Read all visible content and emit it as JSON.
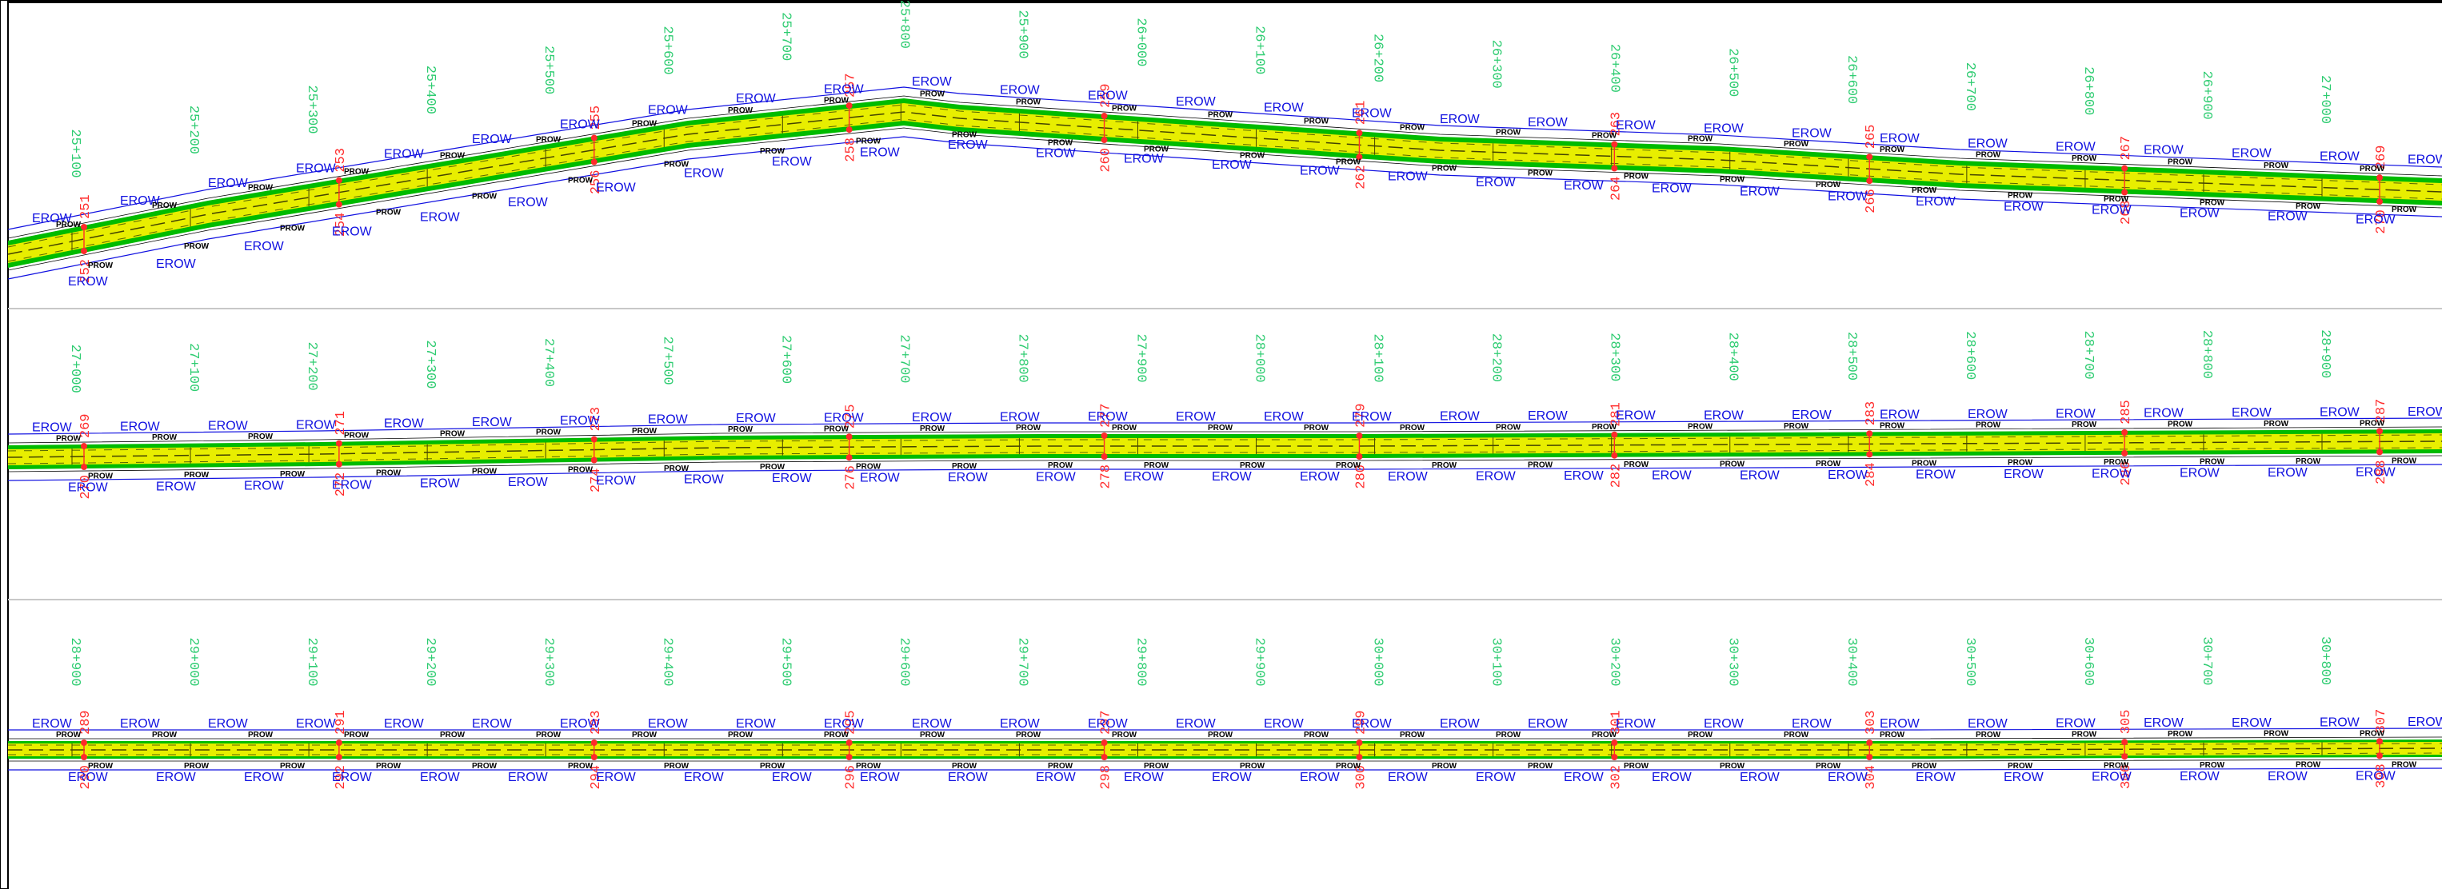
{
  "labels": {
    "erow": "EROW",
    "prow": "PROW"
  },
  "colors": {
    "background": "#ffffff",
    "frame": "#000000",
    "panel_border": "#c8c8c8",
    "corridor_outer": "#00bb00",
    "corridor_inner": "#e8ee00",
    "centerline": "#444400",
    "station_label": "#2ecc71",
    "reference_point": "#ff2b2b",
    "erow": "#1010e0",
    "prow": "#000000"
  },
  "panels": [
    {
      "name": "panel-1",
      "stations": [
        "25+100",
        "25+200",
        "25+300",
        "25+400",
        "25+500",
        "25+600",
        "25+700",
        "25+800",
        "25+900",
        "26+000",
        "26+100",
        "26+200",
        "26+300",
        "26+400",
        "26+500",
        "26+600",
        "26+700",
        "26+800",
        "26+900",
        "27+000"
      ],
      "points_top": [
        "251",
        "253",
        "255",
        "257",
        "259",
        "261",
        "263",
        "265",
        "267",
        "269"
      ],
      "points_bottom": [
        "252",
        "254",
        "256",
        "258",
        "260",
        "262",
        "264",
        "266",
        "268",
        "270"
      ]
    },
    {
      "name": "panel-2",
      "stations": [
        "27+000",
        "27+100",
        "27+200",
        "27+300",
        "27+400",
        "27+500",
        "27+600",
        "27+700",
        "27+800",
        "27+900",
        "28+000",
        "28+100",
        "28+200",
        "28+300",
        "28+400",
        "28+500",
        "28+600",
        "28+700",
        "28+800",
        "28+900"
      ],
      "points_top": [
        "269",
        "271",
        "273",
        "275",
        "277",
        "279",
        "281",
        "283",
        "285",
        "287"
      ],
      "points_bottom": [
        "270",
        "272",
        "274",
        "276",
        "278",
        "280",
        "282",
        "284",
        "286",
        "288"
      ]
    },
    {
      "name": "panel-3",
      "stations": [
        "28+900",
        "29+000",
        "29+100",
        "29+200",
        "29+300",
        "29+400",
        "29+500",
        "29+600",
        "29+700",
        "29+800",
        "29+900",
        "30+000",
        "30+100",
        "30+200",
        "30+300",
        "30+400",
        "30+500",
        "30+600",
        "30+700",
        "30+800"
      ],
      "points_top": [
        "289",
        "291",
        "293",
        "295",
        "297",
        "299",
        "301",
        "303",
        "305",
        "307"
      ],
      "points_bottom": [
        "290",
        "292",
        "294",
        "296",
        "298",
        "300",
        "302",
        "304",
        "306",
        "308"
      ]
    }
  ]
}
